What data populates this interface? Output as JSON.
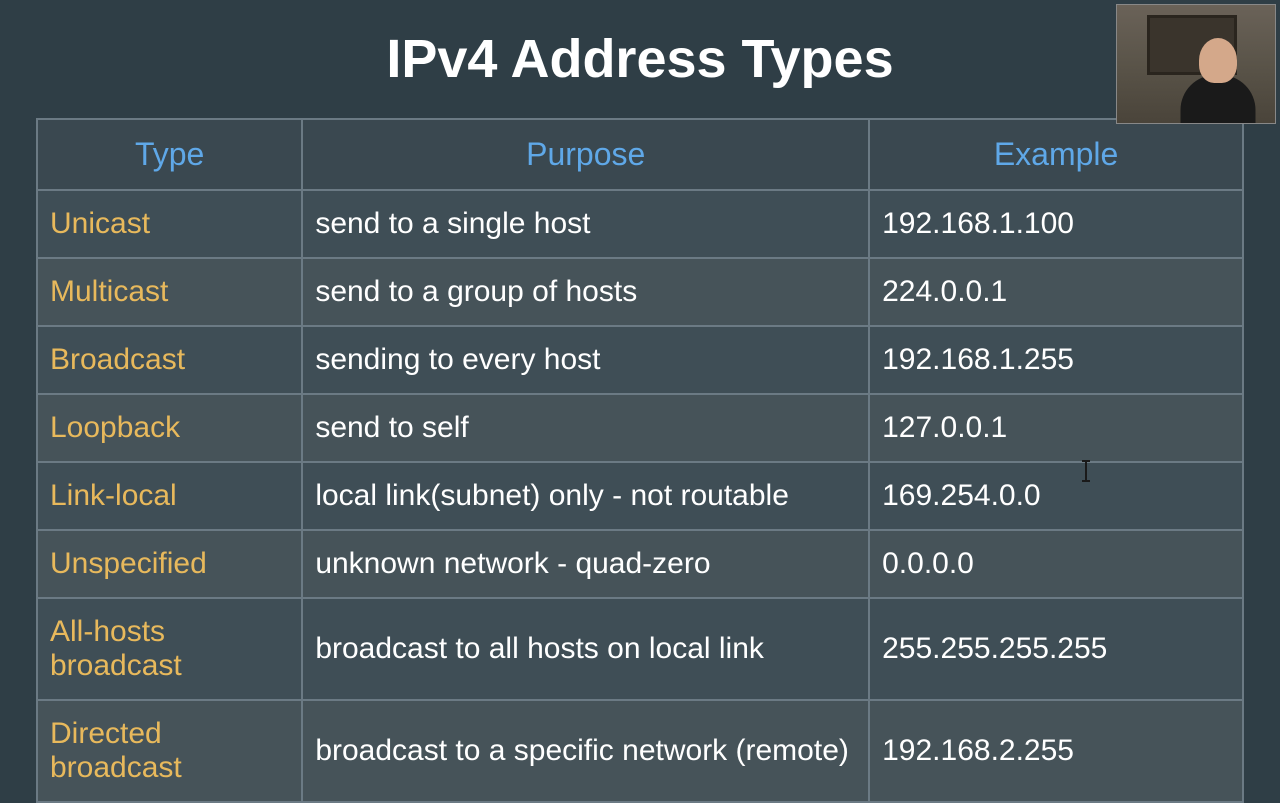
{
  "title": "IPv4 Address Types",
  "colors": {
    "background": "#2f3e46",
    "title_text": "#ffffff",
    "header_bg": "#3a4850",
    "header_text": "#5fa8e8",
    "type_text": "#e8b95c",
    "body_text": "#ffffff",
    "row_odd": "#3f4e56",
    "row_even": "#465359",
    "border": "#6b7a84"
  },
  "table": {
    "columns": [
      "Type",
      "Purpose",
      "Example"
    ],
    "column_widths_pct": [
      22,
      47,
      31
    ],
    "rows": [
      {
        "type": "Unicast",
        "purpose": "send to a single host",
        "example": "192.168.1.100"
      },
      {
        "type": "Multicast",
        "purpose": "send to a group of hosts",
        "example": "224.0.0.1"
      },
      {
        "type": "Broadcast",
        "purpose": "sending to every host",
        "example": "192.168.1.255"
      },
      {
        "type": "Loopback",
        "purpose": "send to self",
        "example": "127.0.0.1"
      },
      {
        "type": "Link-local",
        "purpose": "local link(subnet) only - not routable",
        "example": "169.254.0.0"
      },
      {
        "type": "Unspecified",
        "purpose": "unknown network - quad-zero",
        "example": "0.0.0.0"
      },
      {
        "type": "All-hosts broadcast",
        "purpose": "broadcast to all hosts on local link",
        "example": "255.255.255.255"
      },
      {
        "type": "Directed broadcast",
        "purpose": "broadcast to a specific network (remote)",
        "example": "192.168.2.255"
      }
    ]
  },
  "typography": {
    "title_fontsize": 54,
    "header_fontsize": 32,
    "cell_fontsize": 30,
    "font_family": "Arial Narrow"
  },
  "overlay": {
    "webcam_present": true,
    "text_cursor_present": true
  }
}
